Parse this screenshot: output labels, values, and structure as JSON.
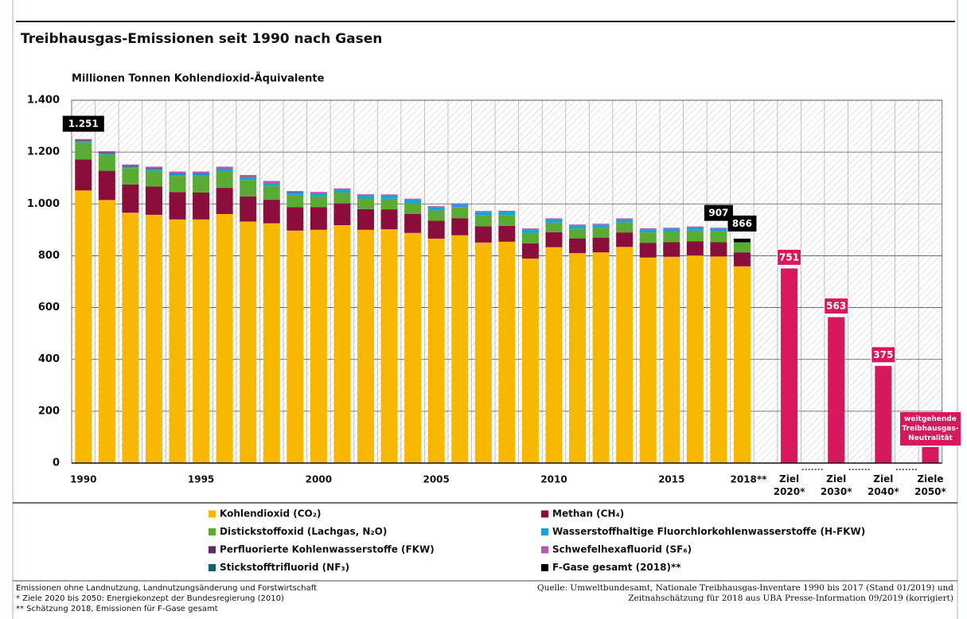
{
  "chart_data": {
    "type": "stacked-bar",
    "title": "Treibhausgas-Emissionen seit 1990 nach Gasen",
    "subtitle": "Millionen Tonnen Kohlendioxid-Äquivalente",
    "categories": [
      "1990",
      null,
      null,
      null,
      null,
      "1995",
      null,
      null,
      null,
      null,
      "2000",
      null,
      null,
      null,
      null,
      "2005",
      null,
      null,
      null,
      null,
      "2010",
      null,
      null,
      null,
      null,
      "2015",
      null,
      null,
      "2018**",
      "Ziel 2020*",
      "Ziel 2030*",
      "Ziel 2040*",
      "Ziele 2050*"
    ],
    "ylim": [
      0,
      1400
    ],
    "yticks": [
      0,
      200,
      400,
      600,
      800,
      {
        "value": 1000,
        "label": "1.000"
      },
      {
        "value": 1200,
        "label": "1.200"
      },
      {
        "value": 1400,
        "label": "1.400"
      }
    ],
    "grid": true,
    "series": [
      {
        "name": "Kohlendioxid (CO₂)",
        "color": "#f9b800",
        "values": [
          1052,
          1015,
          966,
          958,
          940,
          940,
          961,
          932,
          925,
          897,
          900,
          918,
          900,
          902,
          888,
          866,
          879,
          851,
          854,
          789,
          833,
          810,
          813,
          834,
          793,
          796,
          801,
          797,
          759,
          null,
          null,
          null,
          null
        ]
      },
      {
        "name": "Methan (CH₄)",
        "color": "#8b0d3a",
        "values": [
          120,
          113,
          109,
          109,
          106,
          104,
          101,
          97,
          91,
          90,
          87,
          84,
          80,
          77,
          73,
          69,
          66,
          63,
          61,
          59,
          58,
          57,
          57,
          56,
          57,
          56,
          55,
          55,
          54,
          null,
          null,
          null,
          null
        ]
      },
      {
        "name": "Distickstoffoxid (Lachgas, N₂O)",
        "color": "#5aab34",
        "values": [
          65,
          62,
          63,
          61,
          62,
          63,
          63,
          63,
          53,
          45,
          42,
          42,
          41,
          41,
          43,
          40,
          41,
          42,
          42,
          41,
          37,
          38,
          38,
          39,
          40,
          40,
          41,
          41,
          39,
          null,
          null,
          null,
          null
        ]
      },
      {
        "name": "Wasserstoffhaltige Fluorchlorkohlenwasserstoffe (H-FKW)",
        "color": "#1ea1d9",
        "values": [
          6,
          6,
          6,
          7,
          8,
          9,
          10,
          11,
          11,
          12,
          12,
          11,
          12,
          12,
          12,
          12,
          12,
          13,
          13,
          13,
          13,
          12,
          12,
          12,
          12,
          12,
          12,
          11,
          null,
          null,
          null,
          null,
          null
        ]
      },
      {
        "name": "Perfluorierte Kohlenwasserstoffe (FKW)",
        "color": "#5b2a5e",
        "values": [
          3,
          2.8,
          2.6,
          2.4,
          2.3,
          2,
          1.8,
          1.8,
          1.6,
          1.4,
          1,
          0.8,
          0.8,
          0.8,
          0.6,
          0.7,
          0.6,
          0.4,
          0.3,
          0.2,
          0.2,
          0.2,
          0.2,
          0.2,
          0.2,
          0.2,
          0.2,
          0.2,
          null,
          null,
          null,
          null,
          null
        ]
      },
      {
        "name": "Schwefelhexafluorid (SF₆)",
        "color": "#b05ca8",
        "values": [
          4.4,
          4.8,
          5.6,
          6.3,
          6.8,
          7,
          6.8,
          6.7,
          6.9,
          4.1,
          4,
          4,
          3.5,
          3.7,
          3.6,
          3.5,
          3.4,
          3.2,
          3.2,
          3.1,
          3,
          3.2,
          3.1,
          3,
          3.4,
          3.6,
          3.7,
          3.6,
          null,
          null,
          null,
          null,
          null
        ]
      },
      {
        "name": "Stickstofftrifluorid (NF₃)",
        "color": "#135e6e",
        "values": [
          0,
          0,
          0,
          0,
          0,
          0,
          0,
          0,
          0,
          0,
          0.1,
          0.1,
          0.1,
          0.1,
          0.1,
          0.1,
          0.1,
          0.1,
          0.1,
          0.1,
          0.1,
          0.1,
          0.1,
          0.1,
          0.1,
          0.1,
          0.1,
          0.1,
          null,
          null,
          null,
          null,
          null
        ]
      },
      {
        "name": "F-Gase gesamt (2018)**",
        "color": "#000000",
        "values": [
          null,
          null,
          null,
          null,
          null,
          null,
          null,
          null,
          null,
          null,
          null,
          null,
          null,
          null,
          null,
          null,
          null,
          null,
          null,
          null,
          null,
          null,
          null,
          null,
          null,
          null,
          null,
          null,
          14,
          null,
          null,
          null,
          null
        ]
      }
    ],
    "targets": {
      "color": "#d6195d",
      "values": [
        null,
        null,
        null,
        null,
        null,
        null,
        null,
        null,
        null,
        null,
        null,
        null,
        null,
        null,
        null,
        null,
        null,
        null,
        null,
        null,
        null,
        null,
        null,
        null,
        null,
        null,
        null,
        null,
        null,
        751,
        563,
        375,
        62
      ],
      "value_labels": [
        null,
        null,
        null,
        null,
        null,
        null,
        null,
        null,
        null,
        null,
        null,
        null,
        null,
        null,
        null,
        null,
        null,
        null,
        null,
        null,
        null,
        null,
        null,
        null,
        null,
        null,
        null,
        null,
        null,
        "751",
        "563",
        "375",
        "weitgehende Treibhausgas-Neutralität"
      ]
    },
    "totals": {
      "color": "#000000",
      "values": [
        1251,
        null,
        null,
        null,
        null,
        null,
        null,
        null,
        null,
        null,
        null,
        null,
        null,
        null,
        null,
        null,
        null,
        null,
        null,
        null,
        null,
        null,
        null,
        null,
        null,
        null,
        null,
        907,
        866,
        null,
        null,
        null,
        null
      ],
      "value_labels": [
        "1.251",
        null,
        null,
        null,
        null,
        null,
        null,
        null,
        null,
        null,
        null,
        null,
        null,
        null,
        null,
        null,
        null,
        null,
        null,
        null,
        null,
        null,
        null,
        null,
        null,
        null,
        null,
        "907",
        "866",
        null,
        null,
        null,
        null
      ]
    },
    "notes": [
      "Emissionen ohne Landnutzung, Landnutzungsänderung und Forstwirtschaft",
      "* Ziele 2020 bis 2050: Energiekonzept der Bundesregierung (2010)",
      "** Schätzung 2018, Emissionen für F-Gase gesamt"
    ],
    "source": [
      "Quelle: Umweltbundesamt, Nationale Treibhausgas-Inventare 1990 bis 2017 (Stand 01/2019) und",
      "Zeitnahschätzung für 2018 aus UBA Presse-Information 09/2019 (korrigiert)"
    ]
  }
}
